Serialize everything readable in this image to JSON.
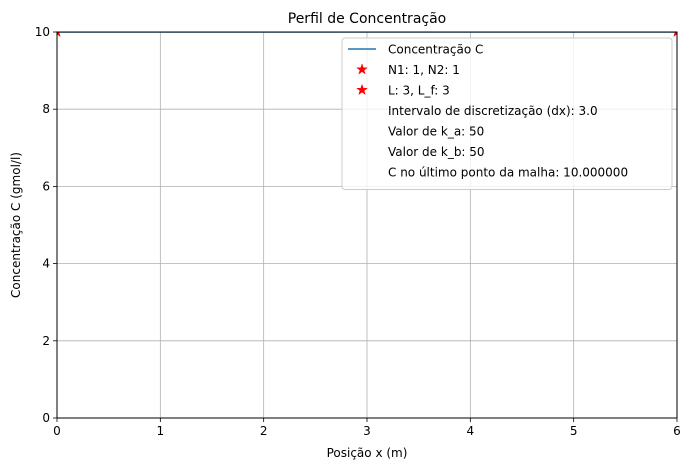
{
  "chart_data": {
    "type": "line",
    "title": "Perfil de Concentração",
    "xlabel": "Posição x (m)",
    "ylabel": "Concentração C (gmol/l)",
    "xlim": [
      0,
      6
    ],
    "ylim": [
      0,
      10
    ],
    "xticks": [
      "0",
      "1",
      "2",
      "3",
      "4",
      "5",
      "6"
    ],
    "yticks": [
      "0",
      "2",
      "4",
      "6",
      "8",
      "10"
    ],
    "grid": true,
    "legend_position": "top-right",
    "series": [
      {
        "name": "Concentração C",
        "type": "line",
        "color": "#1f77b4",
        "x": [
          0,
          3,
          6
        ],
        "y": [
          10,
          10,
          10
        ]
      },
      {
        "name": "N1: 1, N2: 1",
        "type": "scatter",
        "marker": "star",
        "color": "#ff0000",
        "x": [
          0
        ],
        "y": [
          10
        ]
      },
      {
        "name": "L: 3, L_f: 3",
        "type": "scatter",
        "marker": "star",
        "color": "#ff0000",
        "x": [
          6
        ],
        "y": [
          10
        ]
      }
    ],
    "legend_text_entries": [
      "Intervalo de discretização (dx): 3.0",
      "Valor de k_a: 50",
      "Valor de k_b: 50",
      "C no último ponto da malha: 10.000000"
    ]
  }
}
